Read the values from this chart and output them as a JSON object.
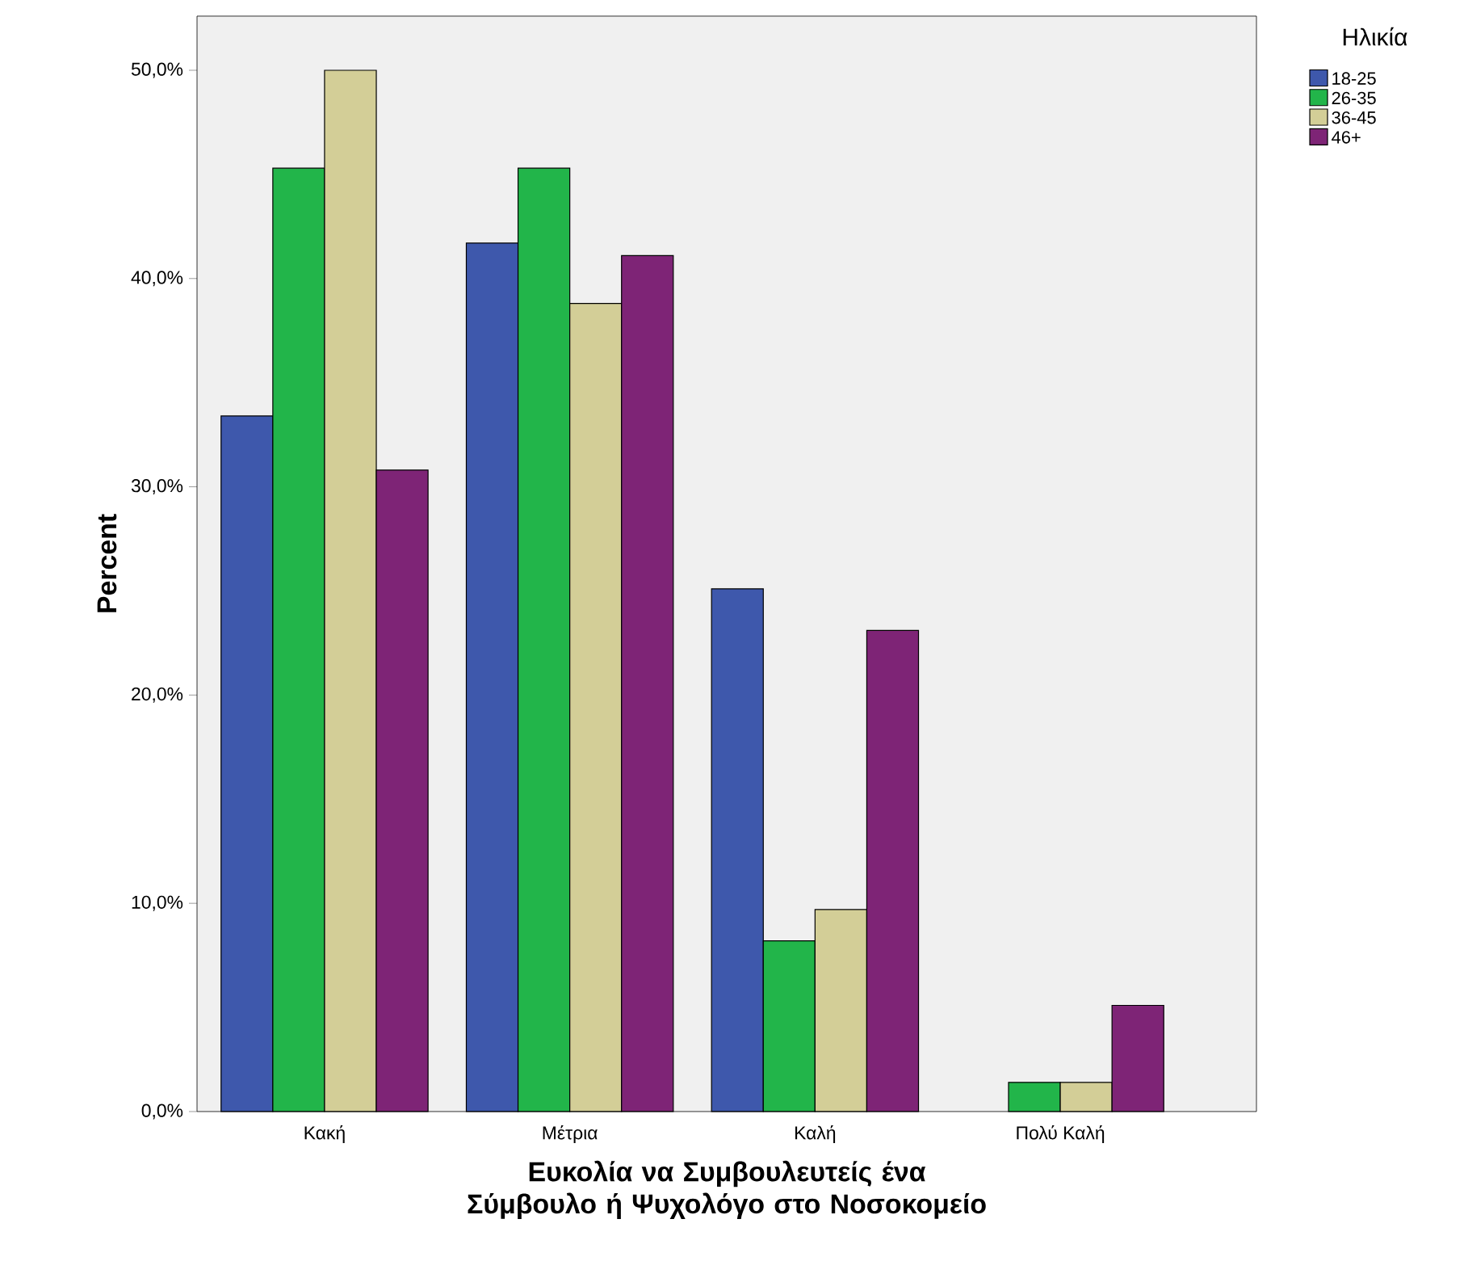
{
  "chart_data": {
    "type": "bar",
    "categories": [
      "Κακή",
      "Μέτρια",
      "Καλή",
      "Πολύ Καλή"
    ],
    "series": [
      {
        "name": "18-25",
        "color": "#3e58ac",
        "values": [
          33.4,
          41.7,
          25.1,
          null
        ]
      },
      {
        "name": "26-35",
        "color": "#22b54a",
        "values": [
          45.3,
          45.3,
          8.2,
          1.4
        ]
      },
      {
        "name": "36-45",
        "color": "#d3ce97",
        "values": [
          50.0,
          38.8,
          9.7,
          1.4
        ]
      },
      {
        "name": "46+",
        "color": "#7e2476",
        "values": [
          30.8,
          41.1,
          23.1,
          5.1
        ]
      }
    ],
    "xlabel": "Ευκολία να Συμβουλευτείς ένα Σύμβουλο ή Ψυχολόγο στο Νοσοκομείο",
    "ylabel": "Percent",
    "legend_title": "Ηλικία",
    "legend": "top right",
    "ylim": [
      0,
      52.6
    ],
    "yticks": [
      {
        "value": 0,
        "label": "0,0%"
      },
      {
        "value": 10,
        "label": "10,0%"
      },
      {
        "value": 20,
        "label": "20,0%"
      },
      {
        "value": 30,
        "label": "30,0%"
      },
      {
        "value": 40,
        "label": "40,0%"
      },
      {
        "value": 50,
        "label": "50,0%"
      }
    ]
  }
}
